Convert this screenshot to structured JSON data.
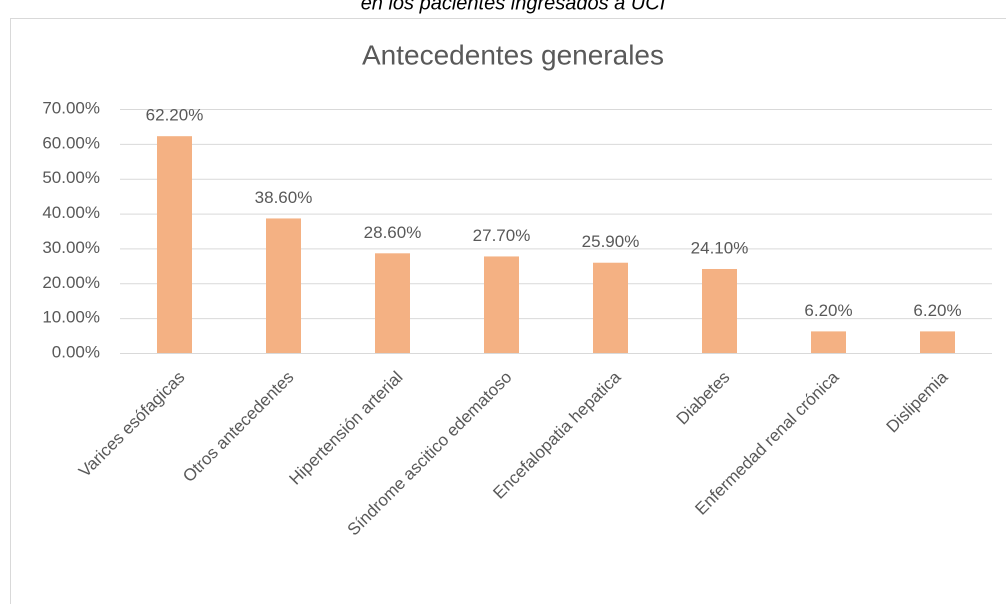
{
  "chart_data": {
    "type": "bar",
    "caption": "en los pacientes ingresados a UCI",
    "title": "Antecedentes generales",
    "categories": [
      "Varices esófagicas",
      "Otros antecedentes",
      "Hipertensión arterial",
      "Síndrome ascitico edematoso",
      "Encefalopatia hepatica",
      "Diabetes",
      "Enfermedad renal crónica",
      "Dislipemia"
    ],
    "values": [
      62.2,
      38.6,
      28.6,
      27.7,
      25.9,
      24.1,
      6.2,
      6.2
    ],
    "value_labels": [
      "62.20%",
      "38.60%",
      "28.60%",
      "27.70%",
      "25.90%",
      "24.10%",
      "6.20%",
      "6.20%"
    ],
    "color": "#f4b183",
    "ylim": [
      0,
      70
    ],
    "yticks": [
      {
        "value": 0,
        "label": "0.00%"
      },
      {
        "value": 10,
        "label": "10.00%"
      },
      {
        "value": 20,
        "label": "20.00%"
      },
      {
        "value": 30,
        "label": "30.00%"
      },
      {
        "value": 40,
        "label": "40.00%"
      },
      {
        "value": 50,
        "label": "50.00%"
      },
      {
        "value": 60,
        "label": "60.00%"
      },
      {
        "value": 70,
        "label": "70.00%"
      }
    ],
    "grid": true
  }
}
